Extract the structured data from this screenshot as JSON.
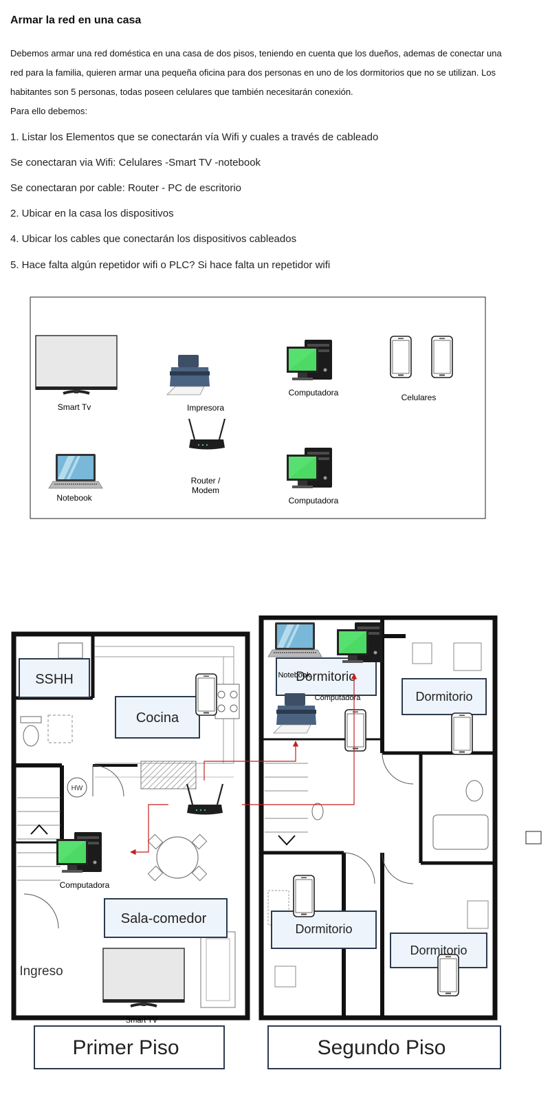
{
  "heading": "Armar la red en una casa",
  "intro": {
    "line1": "Debemos armar una red doméstica en una casa de dos pisos, teniendo en cuenta que los dueños, ademas de conectar una",
    "line2": "red para la familia, quieren armar una pequeña oficina para dos personas en uno de los dormitorios que no se utilizan. Los",
    "line3": "habitantes son 5 personas, todas poseen celulares que también necesitarán conexión.",
    "line4": "Para ello debemos:"
  },
  "questions": {
    "q1": "1. Listar los Elementos que se conectarán vía Wifi y cuales a través de cableado",
    "a1_wifi": "Se conectaran via Wifi: Celulares -Smart TV -notebook",
    "a1_cable": "Se conectaran por cable: Router - PC de escritorio",
    "q2": "2. Ubicar en la casa los dispositivos",
    "q4": "4. Ubicar los cables que conectarán los dispositivos cableados",
    "q5": "5. Hace falta algún repetidor wifi o PLC? Si hace falta un repetidor wifi"
  },
  "inventory": {
    "smart_tv": "Smart Tv",
    "printer": "Impresora",
    "computer_top": "Computadora",
    "phones": "Celulares",
    "notebook": "Notebook",
    "router_line1": "Router /",
    "router_line2": "Modem",
    "computer_bottom": "Computadora"
  },
  "floorplan": {
    "first_floor": {
      "title": "Primer Piso",
      "rooms": {
        "bathroom": "SSHH",
        "kitchen": "Cocina",
        "living": "Sala-comedor",
        "entrance": "Ingreso",
        "heater": "HW"
      },
      "labels": {
        "computer": "Computadora",
        "smart_tv": "Smart TV"
      }
    },
    "second_floor": {
      "title": "Segundo Piso",
      "rooms": {
        "bedroom_1": "Dormitorio",
        "bedroom_2": "Dormitorio",
        "bedroom_3": "Dormitorio",
        "bedroom_4": "Dormitorio"
      },
      "labels": {
        "notebook": "Notebook",
        "computer": "Computadora"
      }
    },
    "colors": {
      "cable": "#c41e1e",
      "screen": "#4cd964",
      "wall": "#111111",
      "label_box_bg": "#eef4fb"
    }
  }
}
